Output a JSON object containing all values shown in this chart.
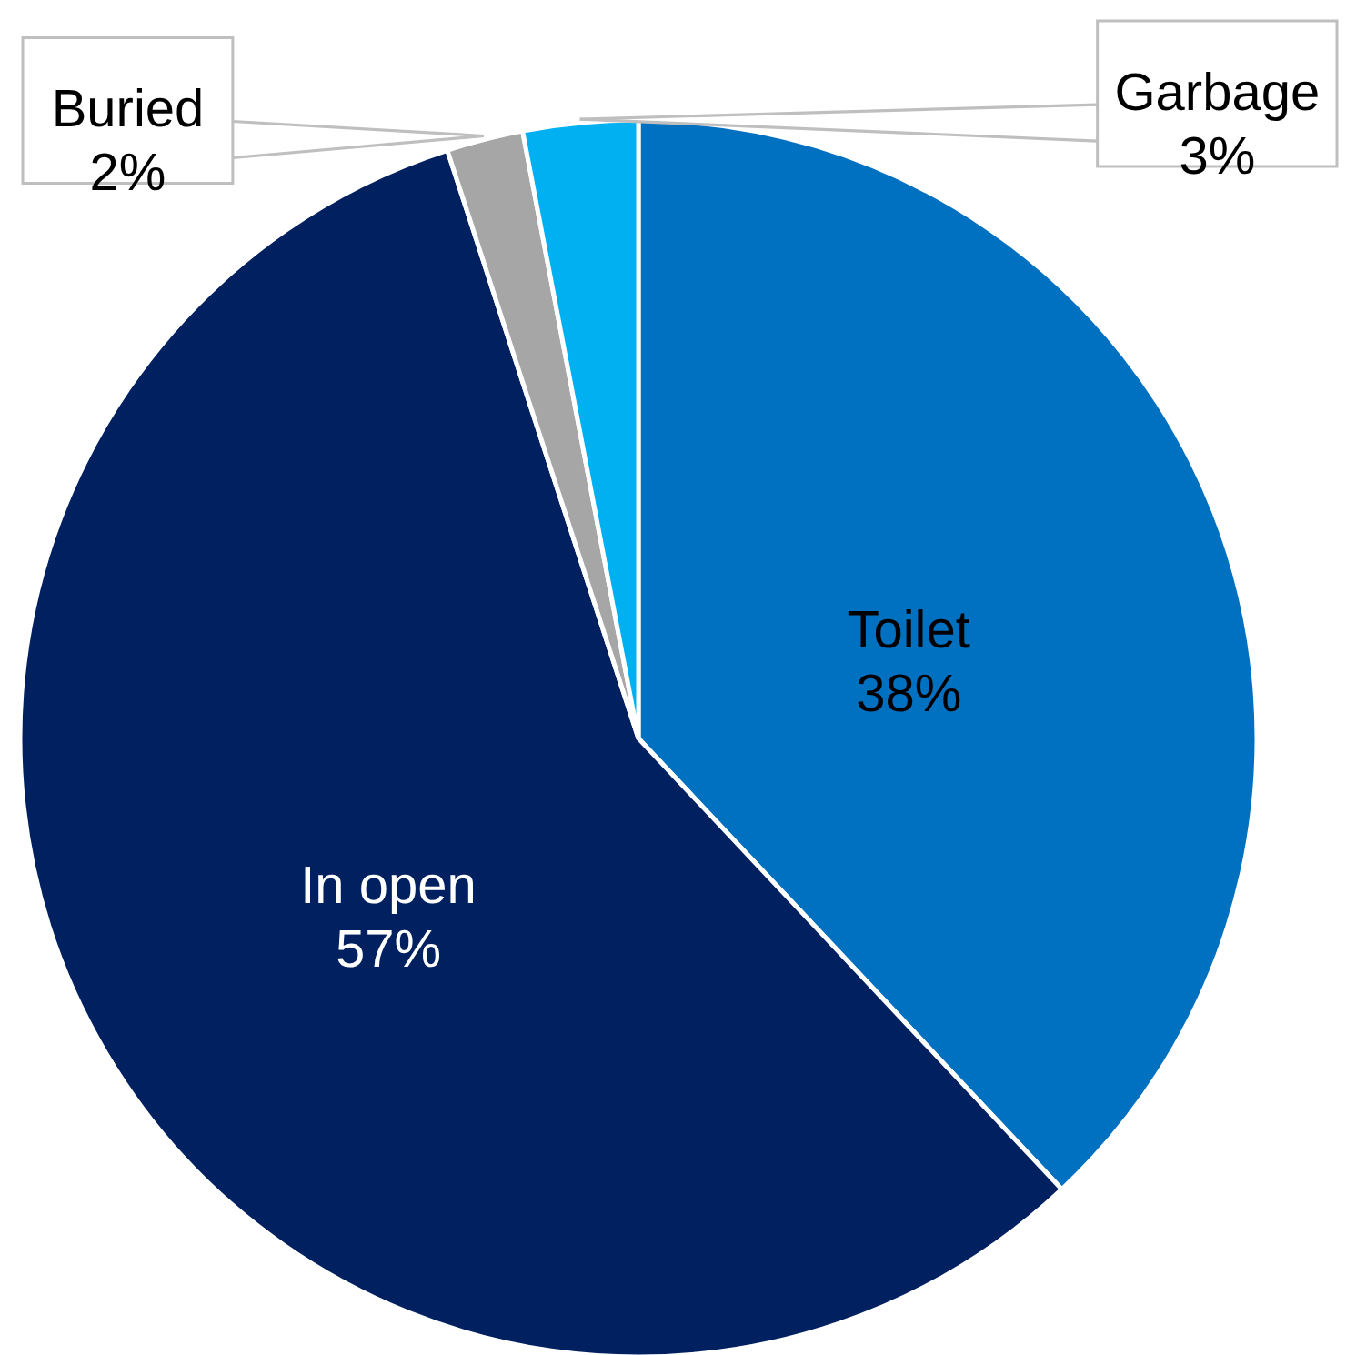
{
  "chart_data": {
    "type": "pie",
    "categories": [
      "Toilet",
      "In open",
      "Buried",
      "Garbage"
    ],
    "values": [
      38,
      57,
      2,
      3
    ],
    "colors": [
      "#0070c0",
      "#002060",
      "#a6a6a6",
      "#00b0f0"
    ],
    "value_labels": [
      "38%",
      "57%",
      "2%",
      "3%"
    ]
  }
}
